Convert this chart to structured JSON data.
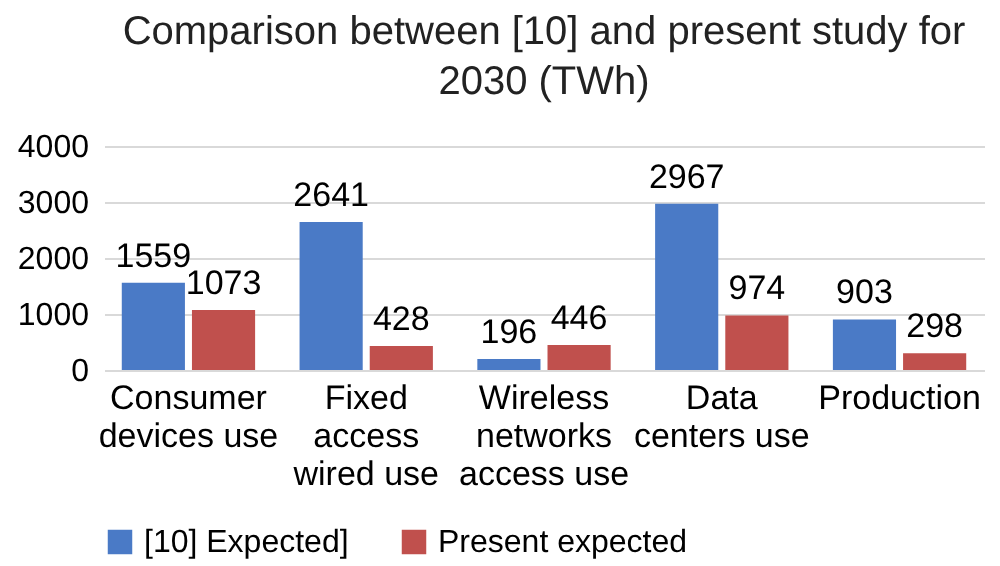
{
  "chart_data": {
    "type": "bar",
    "title": "Comparison between [10] and present study for 2030 (TWh)",
    "categories": [
      "Consumer devices use",
      "Fixed access wired use",
      "Wireless networks access use",
      "Data centers use",
      "Production"
    ],
    "series": [
      {
        "name": "[10] Expected]",
        "color": "#4a7ac6",
        "values": [
          1559,
          2641,
          196,
          2967,
          903
        ]
      },
      {
        "name": "Present expected",
        "color": "#c0504d",
        "values": [
          1073,
          428,
          446,
          974,
          298
        ]
      }
    ],
    "ylim": [
      0,
      4000
    ],
    "yticks": [
      0,
      1000,
      2000,
      3000,
      4000
    ],
    "grid": "y",
    "legend": "bottom",
    "data_labels": true
  }
}
